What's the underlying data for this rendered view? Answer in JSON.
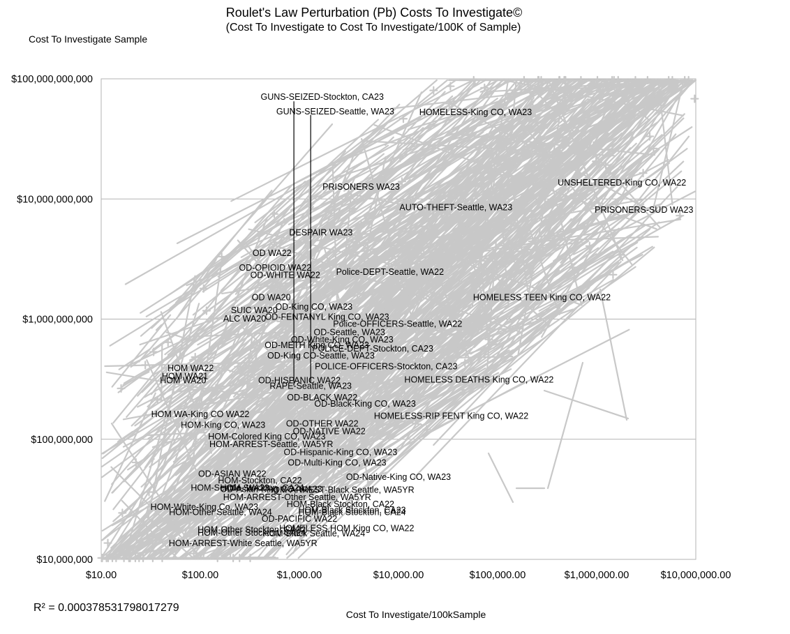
{
  "chart_data": {
    "type": "scatter",
    "title": "Roulet's Law Perturbation (Pb) Costs To Investigate©",
    "subtitle": "(Cost To Investigate to Cost To Investigate/100K of Sample)",
    "ylabel": "Cost To Investigate Sample",
    "xlabel": "Cost To Investigate/100kSample",
    "r_squared": "R² = 0.000378531798017279",
    "x_scale": "log",
    "y_scale": "log",
    "xlim": [
      10,
      10000000
    ],
    "ylim": [
      10000000,
      100000000000
    ],
    "grid": true,
    "x_ticks": [
      {
        "value": 10,
        "label": "$10.00"
      },
      {
        "value": 100,
        "label": "$100.00"
      },
      {
        "value": 1000,
        "label": "$1,000.00"
      },
      {
        "value": 10000,
        "label": "$10,000.00"
      },
      {
        "value": 100000,
        "label": "$100,000.00"
      },
      {
        "value": 1000000,
        "label": "$1,000,000.00"
      },
      {
        "value": 10000000,
        "label": "$10,000,000.00"
      }
    ],
    "y_ticks": [
      {
        "value": 10000000,
        "label": "$10,000,000"
      },
      {
        "value": 100000000,
        "label": "$100,000,000"
      },
      {
        "value": 1000000000,
        "label": "$1,000,000,000"
      },
      {
        "value": 10000000000,
        "label": "$10,000,000,000"
      },
      {
        "value": 100000000000,
        "label": "$100,000,000,000"
      }
    ],
    "series_color": "#c8c8c8",
    "vertical_markers": [
      {
        "x": 880,
        "y_top": 65000000000,
        "y_bottom": 280000000
      },
      {
        "x": 1300,
        "y_top": 50000000000,
        "y_bottom": 300000000
      }
    ],
    "annotations": [
      {
        "text": "GUNS-SEIZED-Stockton, CA23",
        "x": 1700,
        "y": 70000000000
      },
      {
        "text": "GUNS-SEIZED-Seattle, WA23",
        "x": 2300,
        "y": 53000000000
      },
      {
        "text": "HOMELESS-King CO, WA23",
        "x": 60000,
        "y": 52000000000
      },
      {
        "text": "PRISONERS WA23",
        "x": 4200,
        "y": 12500000000
      },
      {
        "text": "UNSHELTERED-King CO, WA22",
        "x": 1800000,
        "y": 13500000000
      },
      {
        "text": "AUTO-THEFT-Seattle, WA23",
        "x": 38000,
        "y": 8400000000
      },
      {
        "text": "PRISONERS-SUD WA23",
        "x": 3000000,
        "y": 8000000000
      },
      {
        "text": "DESPAIR WA23",
        "x": 1650,
        "y": 5200000000
      },
      {
        "text": "OD WA22",
        "x": 530,
        "y": 3500000000
      },
      {
        "text": "OD-OPIOID WA22",
        "x": 570,
        "y": 2650000000
      },
      {
        "text": "OD-WHITE WA22",
        "x": 720,
        "y": 2300000000
      },
      {
        "text": "Police-DEPT-Seattle, WA22",
        "x": 8200,
        "y": 2450000000
      },
      {
        "text": "HOMELESS TEEN King CO, WA22",
        "x": 280000,
        "y": 1500000000
      },
      {
        "text": "OD WA20",
        "x": 520,
        "y": 1500000000
      },
      {
        "text": "OD-King CO, WA23",
        "x": 1400,
        "y": 1250000000
      },
      {
        "text": "SUIC WA20",
        "x": 350,
        "y": 1170000000
      },
      {
        "text": "OD-FENTANYL King CO, WA23",
        "x": 1900,
        "y": 1030000000
      },
      {
        "text": "ALC WA20",
        "x": 280,
        "y": 1000000000
      },
      {
        "text": "Police-OFFICERS-Seattle, WA22",
        "x": 9800,
        "y": 900000000
      },
      {
        "text": "OD-Seattle, WA23",
        "x": 3200,
        "y": 770000000
      },
      {
        "text": "OD-White-King CO, WA23",
        "x": 2700,
        "y": 670000000
      },
      {
        "text": "OD-METH King CO, WA23",
        "x": 1500,
        "y": 600000000
      },
      {
        "text": "POLICE-DEPT-Stockton, CA23",
        "x": 5500,
        "y": 560000000
      },
      {
        "text": "OD-King CO-Seattle, WA23",
        "x": 1650,
        "y": 490000000
      },
      {
        "text": "POLICE-OFFICERS-Stockton, CA23",
        "x": 7500,
        "y": 400000000
      },
      {
        "text": "HOM WA22",
        "x": 80,
        "y": 385000000
      },
      {
        "text": "HOM WA21",
        "x": 70,
        "y": 330000000
      },
      {
        "text": "OD-HISPANIC WA22",
        "x": 1000,
        "y": 305000000
      },
      {
        "text": "HOM WA20",
        "x": 67,
        "y": 305000000
      },
      {
        "text": "HOMELESS DEATHS King CO, WA22",
        "x": 65000,
        "y": 310000000
      },
      {
        "text": "RAPE-Seattle, WA23",
        "x": 1300,
        "y": 275000000
      },
      {
        "text": "OD-BLACK WA22",
        "x": 1700,
        "y": 220000000
      },
      {
        "text": "OD-Black-King CO, WA23",
        "x": 4600,
        "y": 195000000
      },
      {
        "text": "HOM WA-King CO WA22",
        "x": 100,
        "y": 160000000
      },
      {
        "text": "HOMELESS-RIP FENT King CO, WA22",
        "x": 34000,
        "y": 155000000
      },
      {
        "text": "HOM-King CO, WA23",
        "x": 170,
        "y": 130000000
      },
      {
        "text": "OD-OTHER WA22",
        "x": 1700,
        "y": 133000000
      },
      {
        "text": "OD-NATIVE WA22",
        "x": 2000,
        "y": 115000000
      },
      {
        "text": "HOM-Colored King CO, WA23",
        "x": 470,
        "y": 104000000
      },
      {
        "text": "HOM-ARREST-Seattle, WA5YR",
        "x": 520,
        "y": 90000000
      },
      {
        "text": "OD-Hispanic-King CO, WA23",
        "x": 2600,
        "y": 77000000
      },
      {
        "text": "OD-Multi-King CO, WA23",
        "x": 2400,
        "y": 63000000
      },
      {
        "text": "OD-ASIAN WA22",
        "x": 210,
        "y": 51000000
      },
      {
        "text": "OD-Native-King CO, WA23",
        "x": 10000,
        "y": 48000000
      },
      {
        "text": "HOM-Stockton, CA22",
        "x": 400,
        "y": 45000000
      },
      {
        "text": "HOM-Seattle, WA23",
        "x": 200,
        "y": 39000000
      },
      {
        "text": "HOM-Stockton, CA24",
        "x": 420,
        "y": 39000000
      },
      {
        "text": "OD-Asian-King CO, WA23",
        "x": 520,
        "y": 38000000
      },
      {
        "text": "HOM-ARREST-Black Seattle, WA5YR",
        "x": 2600,
        "y": 37500000
      },
      {
        "text": "HOM-ARREST-Other Seattle, WA5YR",
        "x": 950,
        "y": 32500000
      },
      {
        "text": "HOM-White-King Co, WA23",
        "x": 110,
        "y": 27000000
      },
      {
        "text": "HOM-Black Stockton, CA22",
        "x": 2600,
        "y": 28500000
      },
      {
        "text": "HOM-Other Seattle, WA24",
        "x": 160,
        "y": 24500000
      },
      {
        "text": "HOM-Black Stockton, CA23",
        "x": 3400,
        "y": 25500000
      },
      {
        "text": "HOM-Black Stockton, CA24",
        "x": 3400,
        "y": 24500000
      },
      {
        "text": "OD-PACIFIC WA22",
        "x": 1000,
        "y": 21500000
      },
      {
        "text": "HOM-Other Stockton, CA22",
        "x": 330,
        "y": 17500000
      },
      {
        "text": "HOM-Other Stockton, CA24",
        "x": 330,
        "y": 16500000
      },
      {
        "text": "HOM-Black Seattle, WA24",
        "x": 1400,
        "y": 16300000
      },
      {
        "text": "HOMELESS HOM King CO, WA22",
        "x": 3000,
        "y": 18000000
      },
      {
        "text": "HOM-ARREST-White Seattle, WA5YR",
        "x": 270,
        "y": 13500000
      }
    ]
  }
}
